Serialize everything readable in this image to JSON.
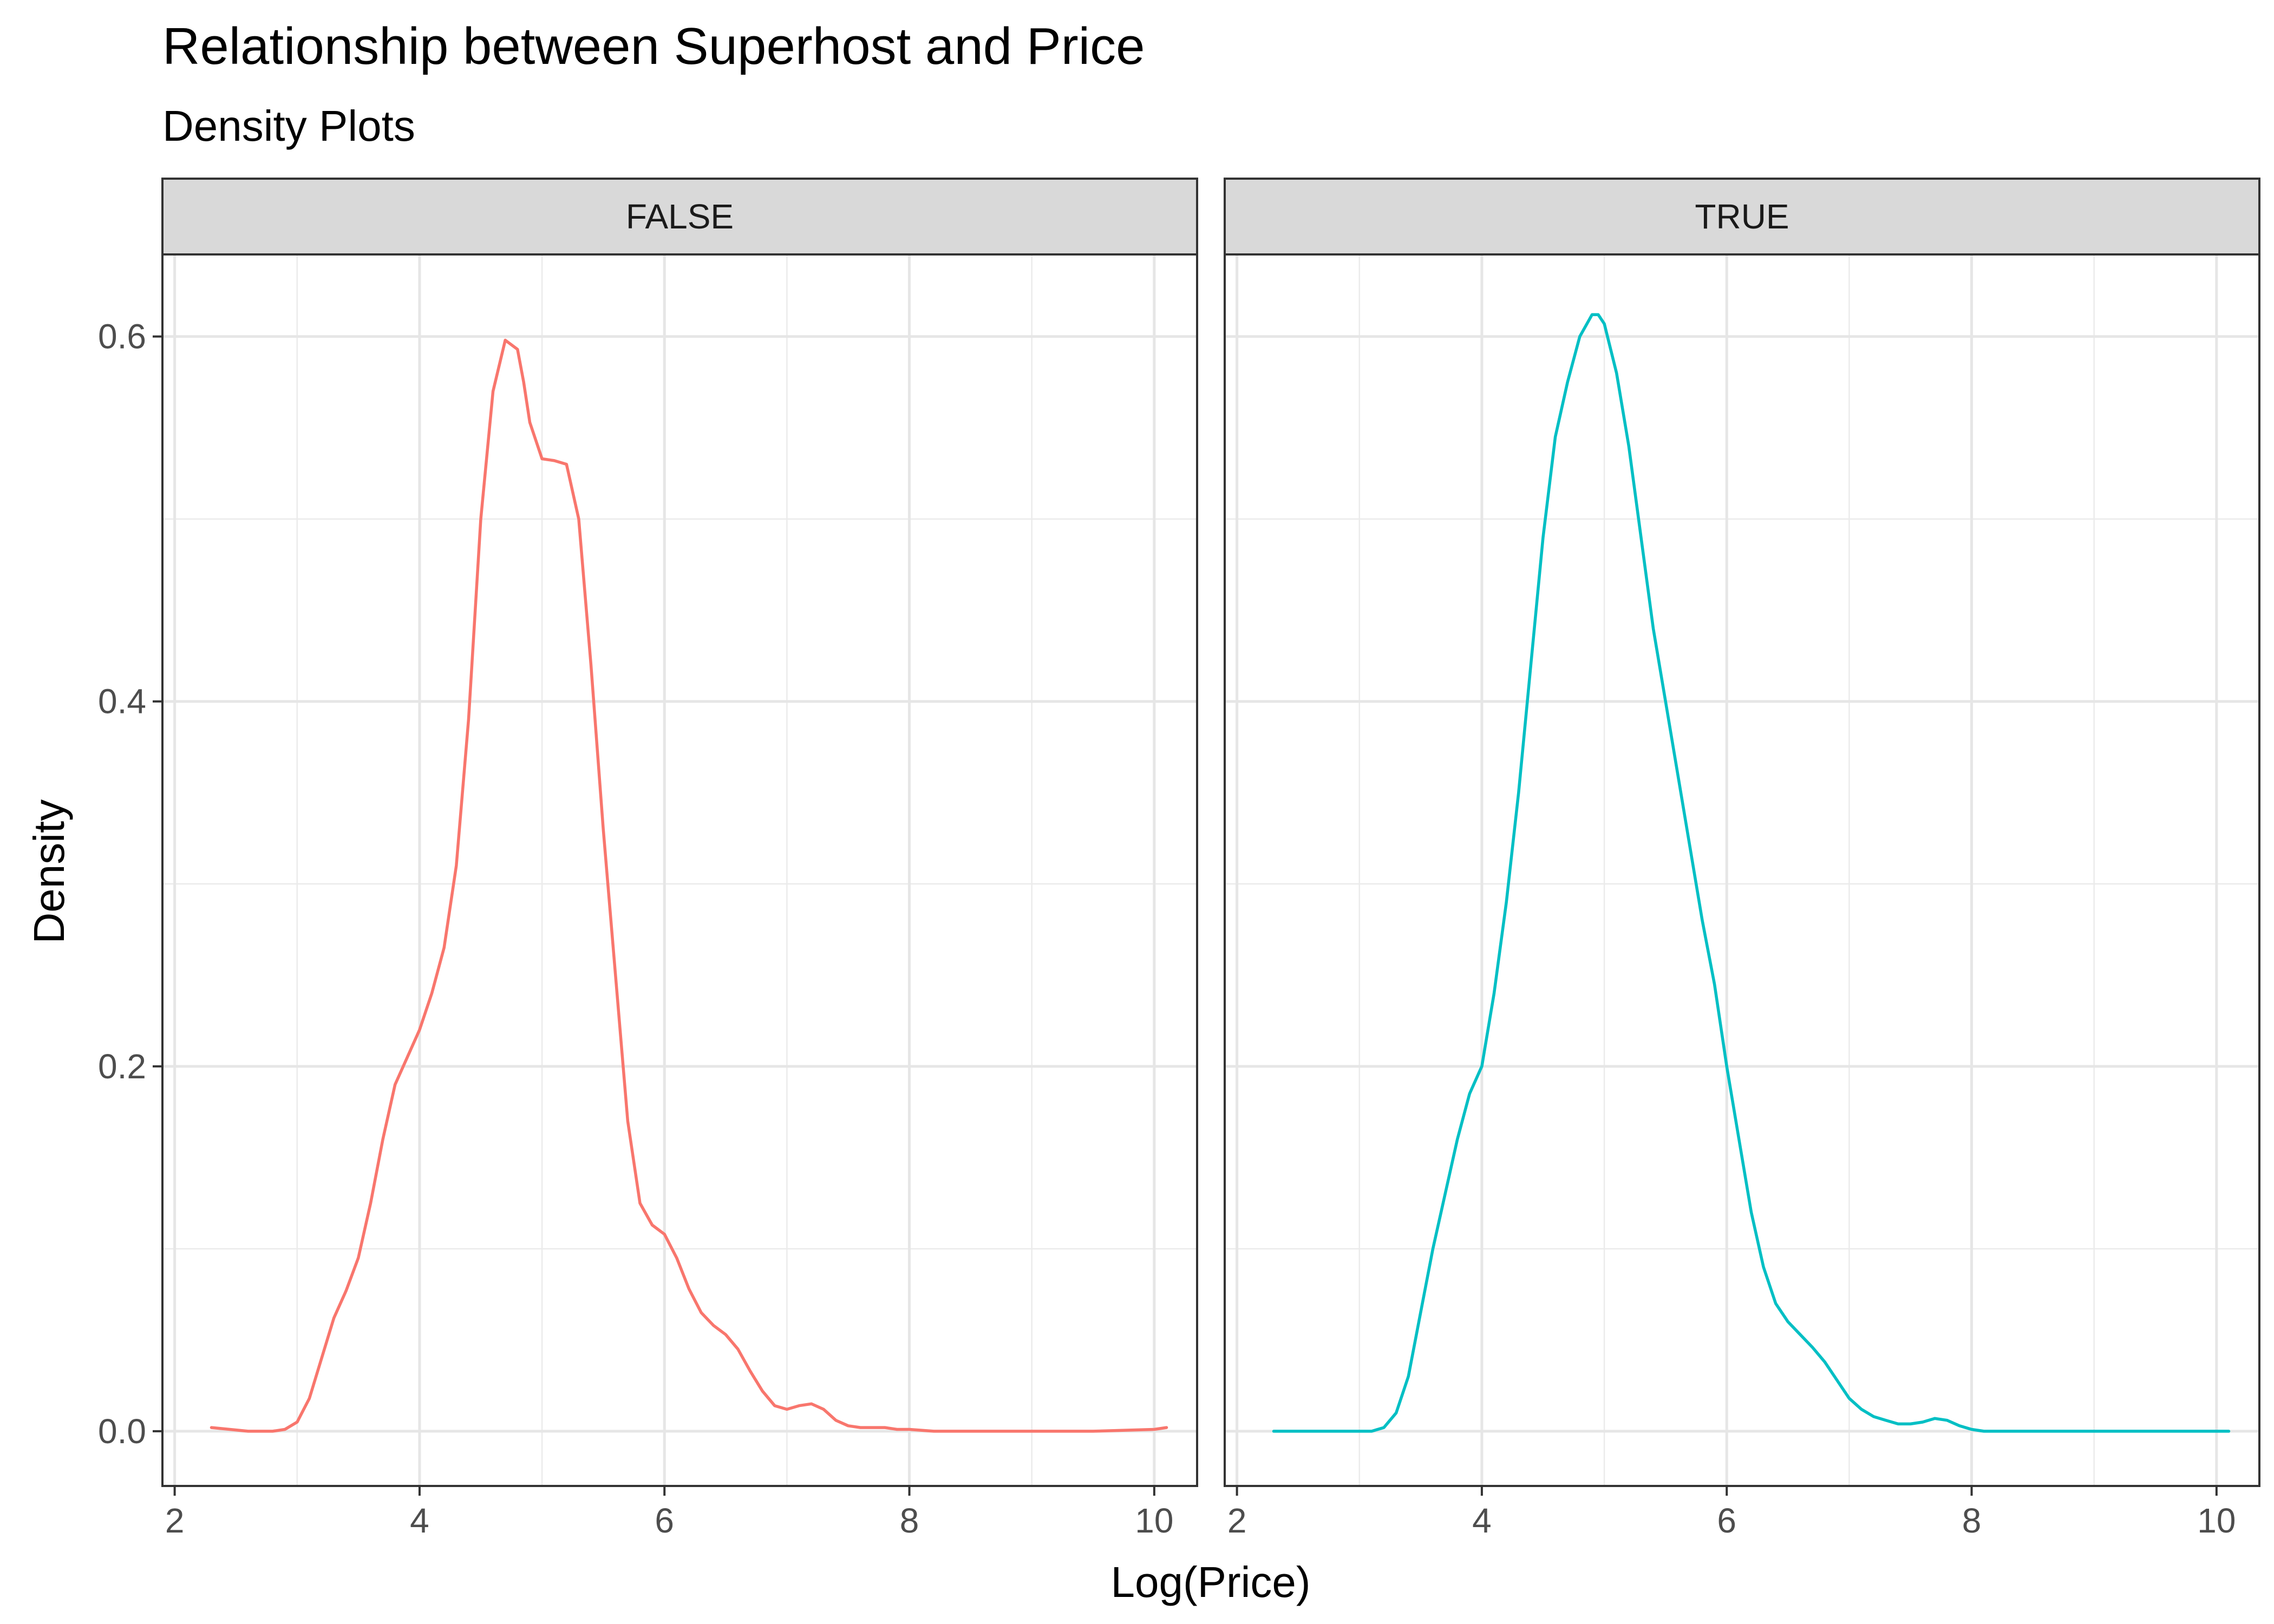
{
  "chart_data": {
    "type": "line",
    "title": "Relationship between Superhost and Price",
    "subtitle": "Density Plots",
    "xlabel": "Log(Price)",
    "ylabel": "Density",
    "xlim": [
      1.9,
      10.35
    ],
    "ylim": [
      -0.03,
      0.645
    ],
    "x_ticks": [
      2,
      4,
      6,
      8,
      10
    ],
    "y_ticks": [
      0.0,
      0.2,
      0.4,
      0.6
    ],
    "x_tick_labels": [
      "2",
      "4",
      "6",
      "8",
      "10"
    ],
    "y_tick_labels": [
      "0.0",
      "0.2",
      "0.4",
      "0.6"
    ],
    "grid": true,
    "legend": "none",
    "facets": [
      {
        "label": "FALSE",
        "color": "#F8766D",
        "x": [
          2.3,
          2.6,
          2.8,
          2.9,
          3.0,
          3.1,
          3.2,
          3.3,
          3.4,
          3.5,
          3.6,
          3.7,
          3.8,
          3.9,
          4.0,
          4.1,
          4.2,
          4.3,
          4.4,
          4.5,
          4.6,
          4.7,
          4.8,
          4.85,
          4.9,
          5.0,
          5.1,
          5.2,
          5.3,
          5.4,
          5.5,
          5.6,
          5.7,
          5.8,
          5.9,
          6.0,
          6.1,
          6.2,
          6.3,
          6.4,
          6.5,
          6.6,
          6.7,
          6.8,
          6.9,
          7.0,
          7.1,
          7.2,
          7.3,
          7.4,
          7.5,
          7.6,
          7.7,
          7.8,
          7.9,
          8.0,
          8.2,
          8.5,
          9.0,
          9.5,
          10.0,
          10.1
        ],
        "y": [
          0.002,
          0.0,
          0.0,
          0.001,
          0.005,
          0.018,
          0.04,
          0.062,
          0.077,
          0.095,
          0.125,
          0.16,
          0.19,
          0.205,
          0.22,
          0.24,
          0.265,
          0.31,
          0.39,
          0.5,
          0.57,
          0.598,
          0.593,
          0.575,
          0.553,
          0.533,
          0.532,
          0.53,
          0.5,
          0.42,
          0.33,
          0.25,
          0.17,
          0.125,
          0.113,
          0.108,
          0.095,
          0.078,
          0.065,
          0.058,
          0.053,
          0.045,
          0.033,
          0.022,
          0.014,
          0.012,
          0.014,
          0.015,
          0.012,
          0.006,
          0.003,
          0.002,
          0.002,
          0.002,
          0.001,
          0.001,
          0.0,
          0.0,
          0.0,
          0.0,
          0.001,
          0.002
        ]
      },
      {
        "label": "TRUE",
        "color": "#00BFC4",
        "x": [
          2.3,
          3.0,
          3.1,
          3.2,
          3.3,
          3.4,
          3.5,
          3.6,
          3.7,
          3.8,
          3.9,
          4.0,
          4.1,
          4.2,
          4.3,
          4.4,
          4.5,
          4.6,
          4.7,
          4.8,
          4.9,
          4.95,
          5.0,
          5.1,
          5.2,
          5.3,
          5.4,
          5.5,
          5.6,
          5.7,
          5.8,
          5.9,
          6.0,
          6.1,
          6.2,
          6.3,
          6.4,
          6.5,
          6.6,
          6.7,
          6.8,
          6.9,
          7.0,
          7.1,
          7.2,
          7.3,
          7.4,
          7.5,
          7.6,
          7.7,
          7.8,
          7.9,
          8.0,
          8.1,
          8.2,
          8.3,
          8.5,
          9.0,
          9.5,
          10.0,
          10.1
        ],
        "y": [
          0.0,
          0.0,
          0.0,
          0.002,
          0.01,
          0.03,
          0.065,
          0.1,
          0.13,
          0.16,
          0.185,
          0.2,
          0.24,
          0.29,
          0.35,
          0.42,
          0.49,
          0.545,
          0.575,
          0.6,
          0.612,
          0.612,
          0.607,
          0.58,
          0.54,
          0.49,
          0.44,
          0.4,
          0.36,
          0.32,
          0.28,
          0.245,
          0.2,
          0.16,
          0.12,
          0.09,
          0.07,
          0.06,
          0.053,
          0.046,
          0.038,
          0.028,
          0.018,
          0.012,
          0.008,
          0.006,
          0.004,
          0.004,
          0.005,
          0.007,
          0.006,
          0.003,
          0.001,
          0.0,
          0.0,
          0.0,
          0.0,
          0.0,
          0.0,
          0.0,
          0.0
        ]
      }
    ]
  }
}
